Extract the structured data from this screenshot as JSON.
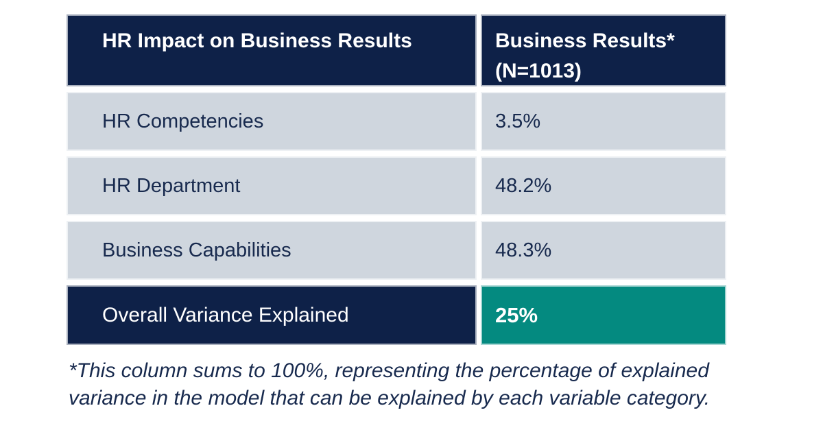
{
  "table": {
    "header": {
      "col1": "HR Impact on Business Results",
      "col2_line1": "Business Results*",
      "col2_line2": "(N=1013)"
    },
    "rows": [
      {
        "label": "HR Competencies",
        "value": "3.5%"
      },
      {
        "label": "HR Department",
        "value": "48.2%"
      },
      {
        "label": "Business Capabilities",
        "value": "48.3%"
      }
    ],
    "total_row": {
      "label": "Overall Variance Explained",
      "value": "25%"
    }
  },
  "footnote": {
    "lines": [
      "*This column sums to 100%, representing the percentage of explained",
      "variance in the model that can be explained by each variable category."
    ]
  },
  "colors": {
    "navy": "#0e2148",
    "teal": "#048a80",
    "light_row": "#cfd6de",
    "text_navy": "#182a4e"
  },
  "chart_data": {
    "type": "table",
    "title": "HR Impact on Business Results",
    "columns": [
      "HR Impact on Business Results",
      "Business Results* (N=1013)"
    ],
    "rows": [
      [
        "HR Competencies",
        "3.5%"
      ],
      [
        "HR Department",
        "48.2%"
      ],
      [
        "Business Capabilities",
        "48.3%"
      ],
      [
        "Overall Variance Explained",
        "25%"
      ]
    ],
    "values_numeric": {
      "HR Competencies": 3.5,
      "HR Department": 48.2,
      "Business Capabilities": 48.3,
      "Overall Variance Explained": 25
    },
    "footnote": "*This column sums to 100%, representing the percentage of explained variance in the model that can be explained by each variable category.",
    "layout_hints": {
      "header_bg": "#0e2148",
      "total_row_label_bg": "#0e2148",
      "total_row_value_bg": "#048a80",
      "body_row_bg": "#cfd6de"
    }
  }
}
